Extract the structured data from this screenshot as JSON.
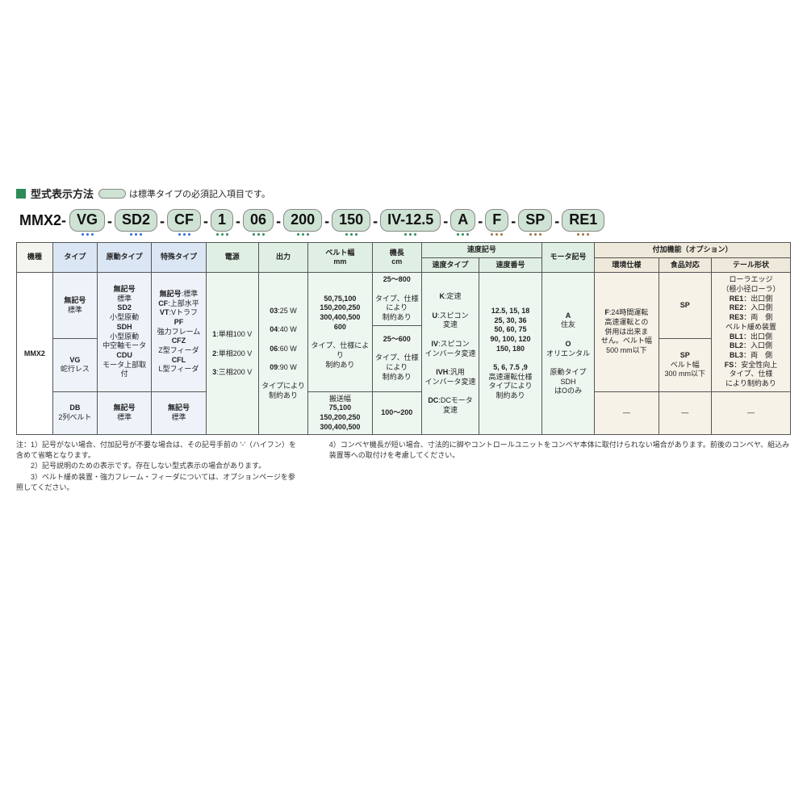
{
  "title": "型式表示方法",
  "title_note": "は標準タイプの必須記入項目です。",
  "colors": {
    "green": "#2e8b57",
    "pill": "#cfe3d4",
    "blue_tint": "#dbe6f4",
    "green_tint": "#e0efe4",
    "tan_tint": "#efe9db",
    "border": "#555"
  },
  "code_segments": [
    {
      "text": "MMX2-",
      "pill": false,
      "dots": null
    },
    {
      "text": "VG",
      "pill": true,
      "dots": "blue"
    },
    {
      "text": "SD2",
      "pill": true,
      "dots": "blue"
    },
    {
      "text": "CF",
      "pill": true,
      "dots": "blue"
    },
    {
      "text": "1",
      "pill": true,
      "dots": "green"
    },
    {
      "text": "06",
      "pill": true,
      "dots": "green"
    },
    {
      "text": "200",
      "pill": true,
      "dots": "green"
    },
    {
      "text": "150",
      "pill": true,
      "dots": "green"
    },
    {
      "text": "IV-12.5",
      "pill": true,
      "dots": "green"
    },
    {
      "text": "A",
      "pill": true,
      "dots": "green"
    },
    {
      "text": "F",
      "pill": true,
      "dots": "brown"
    },
    {
      "text": "SP",
      "pill": true,
      "dots": "brown"
    },
    {
      "text": "RE1",
      "pill": true,
      "dots": "brown"
    }
  ],
  "headers": {
    "h1": "機種",
    "h2": "タイプ",
    "h3": "原動タイプ",
    "h4": "特殊タイプ",
    "h5": "電源",
    "h6": "出力",
    "h7": "ベルト幅\nmm",
    "h8": "機長\ncm",
    "h9": "速度記号",
    "h9a": "速度タイプ",
    "h9b": "速度番号",
    "h10": "モータ記号",
    "h11": "付加機能（オプション）",
    "h11a": "環境仕様",
    "h11b": "食品対応",
    "h11c": "テール形状"
  },
  "col1": {
    "machine": "MMX2"
  },
  "col2": {
    "r1": "無記号\n標準",
    "r2": "VG\n蛇行レス",
    "r3": "DB\n2列ベルト"
  },
  "col3": {
    "r1": "無記号\n標準\nSD2\n小型原動\nSDH\n小型原動\n中空軸モータ\nCDU\nモータ上部取付",
    "r2": "無記号\n標準"
  },
  "col4": {
    "r1": "無記号:標準\nCF:上部水平\nVT:Vトラフ\nPF\n強力フレーム\nCFZ\nZ型フィーダ\nCFL\nL型フィーダ",
    "r2": "無記号\n標準"
  },
  "col5": "1:単相100 V\n2:単相200 V\n3:三相200 V",
  "col6": "03:25 W\n04:40 W\n06:60 W\n09:90 W\nタイプにより制約あり",
  "col7": {
    "a": "50,75,100\n150,200,250\n300,400,500\n600\nタイプ、仕様により制約あり",
    "b": "搬送幅\n75,100\n150,200,250\n300,400,500"
  },
  "col8": {
    "a": "25～800\nタイプ、仕様により制約あり",
    "b": "25～600\nタイプ、仕様により制約あり",
    "c": "100～200"
  },
  "col9a": "K:定速\nU:スピコン変速\nIV:スピコンインバータ変速\nIVH:汎用インバータ変速\nDC:DCモータ変速",
  "col9b": "12.5, 15, 18\n25, 30, 36\n50, 60, 75\n90, 100, 120\n150, 180\n\n5, 6, 7.5 ,9\n高速運転仕様タイプにより制約あり",
  "col10": "A\n住友\n\nO\nオリエンタル\n原動タイプSDHはOのみ",
  "col11a": {
    "a": "F:24時間運転 高速運転との併用は出来ません。ベルト幅500 mm以下",
    "b": "—"
  },
  "col11b": {
    "a": "SP",
    "b": "SP\nベルト幅300 mm以下",
    "c": "—"
  },
  "col11c": {
    "a": "ローラエッジ（極小径ローラ）\nRE1：出口側\nRE2：入口側\nRE3：両　側\nベルト緩め装置\nBL1：出口側\nBL2：入口側\nBL3：両　側\nFS：安全性向上\nタイプ、仕様により制約あり",
    "b": "—"
  },
  "notes_left": "注：1）記号がない場合、付加記号が不要な場合は、その記号手前の '-'（ハイフン）を含めて省略となります。\n　　2）記号説明のための表示です。存在しない型式表示の場合があります。\n　　3）ベルト緩め装置・強力フレーム・フィーダについては、オプションページを参照してください。",
  "notes_right": "4）コンベヤ機長が短い場合、寸法的に脚やコントロールユニットをコンベヤ本体に取付けられない場合があります。前後のコンベヤ、組込み装置等への取付けを考慮してください。"
}
